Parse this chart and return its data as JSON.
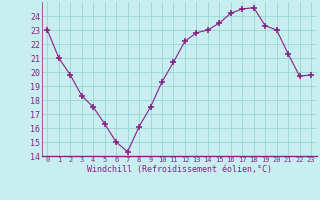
{
  "hours": [
    0,
    1,
    2,
    3,
    4,
    5,
    6,
    7,
    8,
    9,
    10,
    11,
    12,
    13,
    14,
    15,
    16,
    17,
    18,
    19,
    20,
    21,
    22,
    23
  ],
  "windchill": [
    23.0,
    21.0,
    19.8,
    18.3,
    17.5,
    16.3,
    15.0,
    14.3,
    16.1,
    17.5,
    19.3,
    20.7,
    22.2,
    22.8,
    23.0,
    23.5,
    24.2,
    24.5,
    24.6,
    23.3,
    23.0,
    21.3,
    19.7,
    19.8
  ],
  "line_color": "#882288",
  "marker": "+",
  "marker_size": 4,
  "bg_color": "#c8eef0",
  "grid_color": "#a0d8d8",
  "xlabel": "Windchill (Refroidissement éolien,°C)",
  "ylim": [
    14,
    25
  ],
  "yticks": [
    14,
    15,
    16,
    17,
    18,
    19,
    20,
    21,
    22,
    23,
    24
  ],
  "xlim": [
    -0.5,
    23.5
  ],
  "xticks": [
    0,
    1,
    2,
    3,
    4,
    5,
    6,
    7,
    8,
    9,
    10,
    11,
    12,
    13,
    14,
    15,
    16,
    17,
    18,
    19,
    20,
    21,
    22,
    23
  ]
}
